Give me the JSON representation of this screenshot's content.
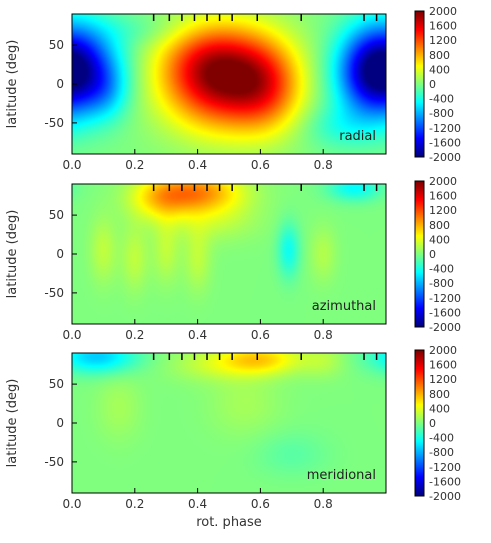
{
  "chart_data": [
    {
      "type": "heatmap",
      "panel_label": "radial",
      "xlabel": "",
      "ylabel": "latitude (deg)",
      "xlim": [
        0,
        1
      ],
      "ylim": [
        -90,
        90
      ],
      "xticks": [
        "0.0",
        "0.2",
        "0.4",
        "0.6",
        "0.8"
      ],
      "yticks": [
        "50",
        "0",
        "-50"
      ],
      "colorbar": {
        "vmin": -2000,
        "vmax": 2000,
        "ticks": [
          "2000",
          "1600",
          "1200",
          "800",
          "400",
          "0",
          "-400",
          "-800",
          "-1200",
          "-1600",
          "-2000"
        ]
      },
      "phase_markers": [
        0.26,
        0.31,
        0.35,
        0.39,
        0.43,
        0.47,
        0.51,
        0.59,
        0.73,
        0.93,
        0.97
      ],
      "blobs": [
        {
          "x": 0.48,
          "y": 8,
          "amp": 1850,
          "sx": 0.13,
          "sy": 45
        },
        {
          "x": 0.42,
          "y": 30,
          "amp": 300,
          "sx": 0.1,
          "sy": 30
        },
        {
          "x": 0.62,
          "y": -5,
          "amp": 700,
          "sx": 0.08,
          "sy": 40
        },
        {
          "x": 0.03,
          "y": 20,
          "amp": -1300,
          "sx": 0.09,
          "sy": 40
        },
        {
          "x": 0.11,
          "y": -10,
          "amp": -350,
          "sx": 0.05,
          "sy": 25
        },
        {
          "x": 0.95,
          "y": 15,
          "amp": -1300,
          "sx": 0.08,
          "sy": 40
        },
        {
          "x": 0.85,
          "y": -55,
          "amp": -300,
          "sx": 0.08,
          "sy": 20
        },
        {
          "x": 0.22,
          "y": 70,
          "amp": -150,
          "sx": 0.1,
          "sy": 15
        }
      ]
    },
    {
      "type": "heatmap",
      "panel_label": "azimuthal",
      "xlabel": "",
      "ylabel": "latitude (deg)",
      "xlim": [
        0,
        1
      ],
      "ylim": [
        -90,
        90
      ],
      "xticks": [
        "0.0",
        "0.2",
        "0.4",
        "0.6",
        "0.8"
      ],
      "yticks": [
        "50",
        "0",
        "-50"
      ],
      "colorbar": {
        "vmin": -2000,
        "vmax": 2000,
        "ticks": [
          "2000",
          "1600",
          "1200",
          "800",
          "400",
          "0",
          "-400",
          "-800",
          "-1200",
          "-1600",
          "-2000"
        ]
      },
      "phase_markers": [
        0.26,
        0.31,
        0.35,
        0.39,
        0.43,
        0.47,
        0.51,
        0.59,
        0.73,
        0.93,
        0.97
      ],
      "blobs": [
        {
          "x": 0.4,
          "y": 80,
          "amp": 900,
          "sx": 0.1,
          "sy": 18
        },
        {
          "x": 0.28,
          "y": 70,
          "amp": 500,
          "sx": 0.07,
          "sy": 20
        },
        {
          "x": 0.45,
          "y": 45,
          "amp": 250,
          "sx": 0.1,
          "sy": 20
        },
        {
          "x": 0.1,
          "y": 5,
          "amp": 250,
          "sx": 0.03,
          "sy": 30
        },
        {
          "x": 0.2,
          "y": -5,
          "amp": 250,
          "sx": 0.03,
          "sy": 30
        },
        {
          "x": 0.3,
          "y": 5,
          "amp": 250,
          "sx": 0.03,
          "sy": 30
        },
        {
          "x": 0.4,
          "y": -5,
          "amp": 250,
          "sx": 0.03,
          "sy": 30
        },
        {
          "x": 0.69,
          "y": 5,
          "amp": -450,
          "sx": 0.025,
          "sy": 25
        },
        {
          "x": 0.9,
          "y": 85,
          "amp": -500,
          "sx": 0.06,
          "sy": 12
        },
        {
          "x": 0.8,
          "y": 0,
          "amp": 200,
          "sx": 0.03,
          "sy": 25
        }
      ]
    },
    {
      "type": "heatmap",
      "panel_label": "meridional",
      "xlabel": "rot. phase",
      "ylabel": "latitude (deg)",
      "xlim": [
        0,
        1
      ],
      "ylim": [
        -90,
        90
      ],
      "xticks": [
        "0.0",
        "0.2",
        "0.4",
        "0.6",
        "0.8"
      ],
      "yticks": [
        "50",
        "0",
        "-50"
      ],
      "colorbar": {
        "vmin": -2000,
        "vmax": 2000,
        "ticks": [
          "2000",
          "1600",
          "1200",
          "800",
          "400",
          "0",
          "-400",
          "-800",
          "-1200",
          "-1600",
          "-2000"
        ]
      },
      "phase_markers": [
        0.26,
        0.31,
        0.35,
        0.39,
        0.43,
        0.47,
        0.51,
        0.59,
        0.73,
        0.93,
        0.97
      ],
      "blobs": [
        {
          "x": 0.08,
          "y": 85,
          "amp": -700,
          "sx": 0.09,
          "sy": 15
        },
        {
          "x": 0.6,
          "y": 82,
          "amp": 650,
          "sx": 0.09,
          "sy": 14
        },
        {
          "x": 0.45,
          "y": 75,
          "amp": 250,
          "sx": 0.1,
          "sy": 15
        },
        {
          "x": 0.8,
          "y": 80,
          "amp": 200,
          "sx": 0.05,
          "sy": 15
        },
        {
          "x": 0.15,
          "y": 20,
          "amp": 150,
          "sx": 0.05,
          "sy": 30
        },
        {
          "x": 0.55,
          "y": 25,
          "amp": 150,
          "sx": 0.08,
          "sy": 30
        },
        {
          "x": 0.7,
          "y": -40,
          "amp": -150,
          "sx": 0.08,
          "sy": 20
        }
      ]
    }
  ]
}
